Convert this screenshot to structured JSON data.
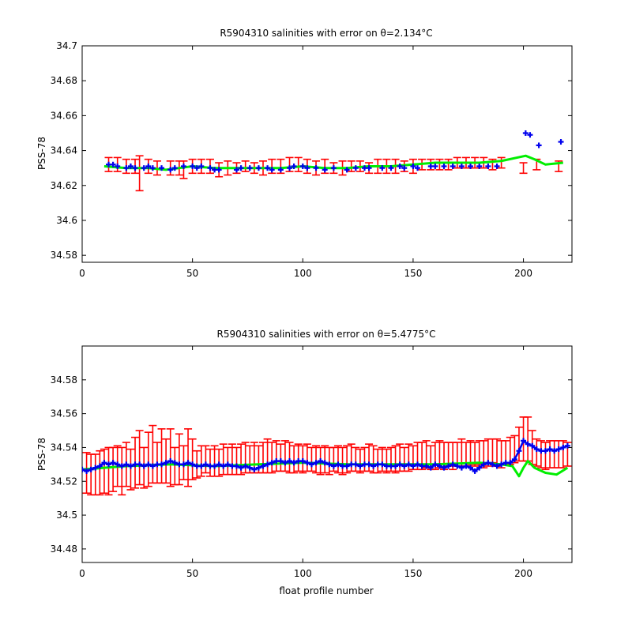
{
  "chart_data": [
    {
      "type": "line",
      "title": "R5904310 salinities with error on θ=2.134",
      "title_suffix": "°C",
      "xlabel": "",
      "ylabel": "PSS-78",
      "xlim": [
        0,
        222
      ],
      "ylim": [
        34.576,
        34.7
      ],
      "xticks": [
        0,
        50,
        100,
        150,
        200
      ],
      "yticks": [
        34.58,
        34.6,
        34.62,
        34.64,
        34.66,
        34.68,
        34.7
      ],
      "ytick_labels": [
        "34.58",
        "34.6",
        "34.62",
        "34.64",
        "34.66",
        "34.68",
        "34.7"
      ],
      "grid": false,
      "series": [
        {
          "role": "salinity-with-error",
          "color": "#ff0000",
          "x": [
            12,
            16,
            20,
            24,
            26,
            30,
            34,
            40,
            44,
            46,
            50,
            54,
            58,
            62,
            66,
            70,
            74,
            78,
            82,
            86,
            90,
            94,
            98,
            102,
            106,
            110,
            114,
            118,
            122,
            126,
            130,
            134,
            138,
            142,
            146,
            150,
            154,
            158,
            162,
            166,
            170,
            174,
            178,
            182,
            186,
            190,
            200,
            206,
            216
          ],
          "y": [
            34.632,
            34.632,
            34.631,
            34.631,
            34.627,
            34.631,
            34.63,
            34.63,
            34.63,
            34.629,
            34.631,
            34.631,
            34.631,
            34.629,
            34.63,
            34.63,
            34.631,
            34.63,
            34.63,
            34.631,
            34.631,
            34.632,
            34.632,
            34.631,
            34.63,
            34.631,
            34.63,
            34.63,
            34.631,
            34.631,
            34.63,
            34.631,
            34.631,
            34.631,
            34.631,
            34.631,
            34.632,
            34.632,
            34.632,
            34.632,
            34.633,
            34.633,
            34.633,
            34.633,
            34.632,
            34.633,
            34.63,
            34.632,
            34.631
          ],
          "err": [
            0.004,
            0.004,
            0.004,
            0.004,
            0.01,
            0.004,
            0.004,
            0.004,
            0.004,
            0.005,
            0.004,
            0.004,
            0.004,
            0.004,
            0.004,
            0.003,
            0.003,
            0.003,
            0.004,
            0.004,
            0.004,
            0.004,
            0.004,
            0.004,
            0.004,
            0.004,
            0.003,
            0.004,
            0.003,
            0.003,
            0.003,
            0.004,
            0.004,
            0.004,
            0.003,
            0.004,
            0.003,
            0.003,
            0.003,
            0.003,
            0.003,
            0.003,
            0.003,
            0.003,
            0.003,
            0.003,
            0.003,
            0.003,
            0.003
          ]
        },
        {
          "role": "mapped-salinity",
          "color": "#00ee00",
          "x": [
            10,
            20,
            30,
            38,
            44,
            50,
            60,
            70,
            80,
            90,
            100,
            110,
            120,
            130,
            140,
            150,
            160,
            170,
            180,
            190,
            201,
            205,
            210,
            218
          ],
          "y": [
            34.631,
            34.63,
            34.63,
            34.629,
            34.63,
            34.631,
            34.63,
            34.63,
            34.63,
            34.63,
            34.631,
            34.63,
            34.63,
            34.631,
            34.631,
            34.632,
            34.633,
            34.633,
            34.633,
            34.634,
            34.637,
            34.635,
            34.632,
            34.633
          ]
        },
        {
          "role": "float-salinity",
          "color": "#0000ee",
          "x": [
            12,
            14,
            16,
            20,
            22,
            24,
            28,
            30,
            32,
            36,
            40,
            42,
            46,
            50,
            52,
            54,
            58,
            60,
            62,
            70,
            72,
            76,
            80,
            84,
            86,
            90,
            94,
            96,
            100,
            102,
            106,
            110,
            114,
            120,
            124,
            128,
            130,
            136,
            140,
            144,
            146,
            150,
            152,
            158,
            160,
            164,
            168,
            172,
            176,
            180,
            184,
            188,
            201,
            203,
            207,
            217
          ],
          "y": [
            34.632,
            34.632,
            34.631,
            34.63,
            34.631,
            34.63,
            34.63,
            34.631,
            34.63,
            34.63,
            34.629,
            34.63,
            34.631,
            34.631,
            34.63,
            34.631,
            34.63,
            34.629,
            34.629,
            34.629,
            34.63,
            34.63,
            34.63,
            34.63,
            34.629,
            34.629,
            34.63,
            34.631,
            34.631,
            34.63,
            34.63,
            34.629,
            34.63,
            34.629,
            34.63,
            34.63,
            34.63,
            34.63,
            34.63,
            34.631,
            34.63,
            34.631,
            34.63,
            34.631,
            34.631,
            34.631,
            34.631,
            34.631,
            34.631,
            34.631,
            34.631,
            34.631,
            34.65,
            34.649,
            34.643,
            34.645
          ]
        }
      ]
    },
    {
      "type": "line",
      "title": "R5904310 salinities with error on θ=5.4775",
      "title_suffix": "°C",
      "xlabel": "float profile number",
      "ylabel": "PSS-78",
      "xlim": [
        0,
        222
      ],
      "ylim": [
        34.472,
        34.6
      ],
      "xticks": [
        0,
        50,
        100,
        150,
        200
      ],
      "yticks": [
        34.48,
        34.5,
        34.52,
        34.54,
        34.56,
        34.58
      ],
      "ytick_labels": [
        "34.48",
        "34.5",
        "34.52",
        "34.54",
        "34.56",
        "34.58"
      ],
      "grid": false,
      "series": [
        {
          "role": "salinity-with-error",
          "color": "#ff0000",
          "x": [
            2,
            4,
            6,
            8,
            10,
            12,
            14,
            16,
            18,
            20,
            22,
            24,
            26,
            28,
            30,
            32,
            34,
            36,
            38,
            40,
            42,
            44,
            46,
            48,
            50,
            52,
            54,
            56,
            58,
            60,
            62,
            64,
            66,
            68,
            70,
            72,
            74,
            76,
            78,
            80,
            82,
            84,
            86,
            88,
            90,
            92,
            94,
            96,
            98,
            100,
            102,
            104,
            106,
            108,
            110,
            112,
            114,
            116,
            118,
            120,
            122,
            124,
            126,
            128,
            130,
            132,
            134,
            136,
            138,
            140,
            142,
            144,
            146,
            148,
            150,
            152,
            154,
            156,
            158,
            160,
            162,
            164,
            166,
            168,
            170,
            172,
            174,
            176,
            178,
            180,
            182,
            184,
            186,
            188,
            190,
            192,
            194,
            196,
            198,
            200,
            202,
            204,
            206,
            208,
            210,
            212,
            214,
            216,
            218,
            220
          ],
          "y": [
            34.525,
            34.524,
            34.524,
            34.525,
            34.526,
            34.526,
            34.527,
            34.529,
            34.526,
            34.53,
            34.527,
            34.531,
            34.534,
            34.528,
            34.533,
            34.536,
            34.531,
            34.535,
            34.532,
            34.534,
            34.529,
            34.533,
            34.531,
            34.534,
            34.533,
            34.53,
            34.532,
            34.533,
            34.531,
            34.532,
            34.531,
            34.533,
            34.532,
            34.533,
            34.532,
            34.533,
            34.534,
            34.533,
            34.534,
            34.533,
            34.534,
            34.535,
            34.534,
            34.535,
            34.534,
            34.535,
            34.534,
            34.533,
            34.534,
            34.533,
            34.534,
            34.533,
            34.533,
            34.532,
            34.533,
            34.532,
            34.533,
            34.533,
            34.532,
            34.533,
            34.534,
            34.533,
            34.532,
            34.533,
            34.534,
            34.533,
            34.532,
            34.533,
            34.532,
            34.533,
            34.533,
            34.534,
            34.533,
            34.534,
            34.534,
            34.535,
            34.535,
            34.536,
            34.534,
            34.535,
            34.536,
            34.535,
            34.536,
            34.535,
            34.536,
            34.537,
            34.536,
            34.537,
            34.536,
            34.537,
            34.536,
            34.537,
            34.538,
            34.537,
            34.536,
            34.537,
            34.538,
            34.539,
            34.542,
            34.545,
            34.545,
            34.54,
            34.537,
            34.536,
            34.535,
            34.536,
            34.536,
            34.536,
            34.536,
            34.536
          ],
          "err": [
            0.012,
            0.012,
            0.012,
            0.013,
            0.013,
            0.014,
            0.013,
            0.012,
            0.014,
            0.013,
            0.012,
            0.015,
            0.016,
            0.012,
            0.016,
            0.017,
            0.012,
            0.016,
            0.013,
            0.017,
            0.011,
            0.015,
            0.01,
            0.017,
            0.012,
            0.008,
            0.009,
            0.008,
            0.008,
            0.009,
            0.008,
            0.009,
            0.008,
            0.009,
            0.008,
            0.009,
            0.009,
            0.008,
            0.009,
            0.008,
            0.009,
            0.01,
            0.009,
            0.009,
            0.008,
            0.009,
            0.009,
            0.008,
            0.008,
            0.008,
            0.008,
            0.007,
            0.008,
            0.008,
            0.008,
            0.008,
            0.007,
            0.008,
            0.008,
            0.008,
            0.008,
            0.007,
            0.007,
            0.007,
            0.008,
            0.008,
            0.007,
            0.007,
            0.007,
            0.007,
            0.008,
            0.008,
            0.007,
            0.008,
            0.007,
            0.008,
            0.008,
            0.008,
            0.007,
            0.008,
            0.008,
            0.008,
            0.007,
            0.008,
            0.007,
            0.008,
            0.007,
            0.007,
            0.007,
            0.007,
            0.008,
            0.008,
            0.007,
            0.008,
            0.008,
            0.007,
            0.008,
            0.008,
            0.01,
            0.013,
            0.013,
            0.01,
            0.008,
            0.008,
            0.008,
            0.008,
            0.008,
            0.008,
            0.008,
            0.007
          ]
        },
        {
          "role": "mapped-salinity",
          "color": "#00ee00",
          "x": [
            0,
            20,
            40,
            60,
            80,
            100,
            120,
            140,
            160,
            180,
            190,
            195,
            198,
            200,
            202,
            205,
            210,
            215,
            220
          ],
          "y": [
            34.527,
            34.529,
            34.53,
            34.529,
            34.53,
            34.531,
            34.53,
            34.53,
            34.53,
            34.531,
            34.53,
            34.529,
            34.523,
            34.528,
            34.532,
            34.528,
            34.525,
            34.524,
            34.528
          ]
        },
        {
          "role": "float-salinity",
          "color": "#0000ee",
          "x": [
            0,
            2,
            4,
            6,
            8,
            10,
            12,
            14,
            16,
            18,
            20,
            22,
            24,
            26,
            28,
            30,
            32,
            34,
            36,
            38,
            40,
            42,
            44,
            46,
            48,
            50,
            52,
            54,
            56,
            58,
            60,
            62,
            64,
            66,
            68,
            70,
            72,
            74,
            76,
            78,
            80,
            82,
            84,
            86,
            88,
            90,
            92,
            94,
            96,
            98,
            100,
            102,
            104,
            106,
            108,
            110,
            112,
            114,
            116,
            118,
            120,
            122,
            124,
            126,
            128,
            130,
            132,
            134,
            136,
            138,
            140,
            142,
            144,
            146,
            148,
            150,
            152,
            154,
            156,
            158,
            160,
            162,
            164,
            166,
            168,
            170,
            172,
            174,
            176,
            178,
            180,
            182,
            184,
            186,
            188,
            190,
            192,
            194,
            196,
            198,
            200,
            202,
            204,
            206,
            208,
            210,
            212,
            214,
            216,
            218,
            220
          ],
          "y": [
            34.527,
            34.526,
            34.527,
            34.528,
            34.529,
            34.531,
            34.53,
            34.531,
            34.53,
            34.529,
            34.53,
            34.529,
            34.53,
            34.53,
            34.529,
            34.53,
            34.529,
            34.53,
            34.53,
            34.531,
            34.532,
            34.531,
            34.53,
            34.53,
            34.531,
            34.53,
            34.529,
            34.529,
            34.53,
            34.529,
            34.529,
            34.53,
            34.529,
            34.53,
            34.529,
            34.529,
            34.528,
            34.529,
            34.528,
            34.527,
            34.528,
            34.529,
            34.53,
            34.531,
            34.532,
            34.532,
            34.531,
            34.532,
            34.531,
            34.532,
            34.532,
            34.531,
            34.53,
            34.531,
            34.532,
            34.531,
            34.53,
            34.529,
            34.53,
            34.529,
            34.529,
            34.53,
            34.53,
            34.529,
            34.53,
            34.53,
            34.529,
            34.53,
            34.53,
            34.529,
            34.529,
            34.529,
            34.53,
            34.529,
            34.53,
            34.529,
            34.53,
            34.529,
            34.529,
            34.528,
            34.53,
            34.529,
            34.528,
            34.529,
            34.53,
            34.529,
            34.528,
            34.529,
            34.528,
            34.526,
            34.528,
            34.53,
            34.531,
            34.53,
            34.529,
            34.53,
            34.531,
            34.531,
            34.533,
            34.538,
            34.544,
            34.542,
            34.541,
            34.539,
            34.538,
            34.538,
            34.539,
            34.538,
            34.539,
            34.54,
            34.541
          ]
        }
      ]
    }
  ]
}
